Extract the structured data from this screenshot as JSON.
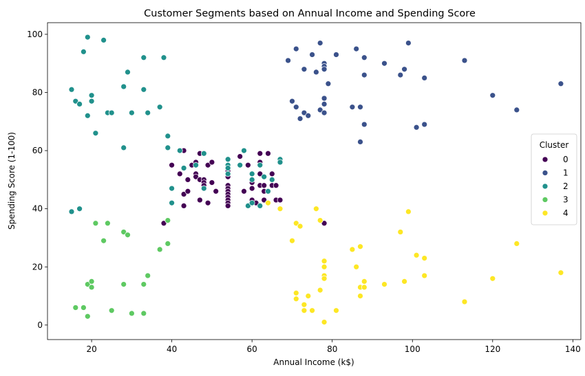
{
  "chart_data": {
    "type": "scatter",
    "title": "Customer Segments based on Annual Income and Spending Score",
    "xlabel": "Annual Income (k$)",
    "ylabel": "Spending Score (1-100)",
    "xlim": [
      9,
      142
    ],
    "ylim": [
      -5,
      104
    ],
    "xticks": [
      20,
      40,
      60,
      80,
      100,
      120,
      140
    ],
    "yticks": [
      0,
      20,
      40,
      60,
      80,
      100
    ],
    "grid": false,
    "legend": {
      "title": "Cluster",
      "placement": "right",
      "entries": [
        "0",
        "1",
        "2",
        "3",
        "4"
      ]
    },
    "series": [
      {
        "name": "0",
        "color": "#440154",
        "points": [
          [
            38,
            35
          ],
          [
            40,
            55
          ],
          [
            42,
            52
          ],
          [
            43,
            60
          ],
          [
            43,
            45
          ],
          [
            43,
            41
          ],
          [
            44,
            50
          ],
          [
            44,
            46
          ],
          [
            45,
            55
          ],
          [
            46,
            56
          ],
          [
            46,
            52
          ],
          [
            46,
            51
          ],
          [
            47,
            59
          ],
          [
            47,
            50
          ],
          [
            47,
            43
          ],
          [
            48,
            59
          ],
          [
            48,
            50
          ],
          [
            48,
            49
          ],
          [
            48,
            48
          ],
          [
            48,
            47
          ],
          [
            49,
            42
          ],
          [
            49,
            55
          ],
          [
            50,
            56
          ],
          [
            50,
            49
          ],
          [
            51,
            46
          ],
          [
            54,
            53
          ],
          [
            54,
            51
          ],
          [
            54,
            48
          ],
          [
            54,
            47
          ],
          [
            54,
            46
          ],
          [
            54,
            45
          ],
          [
            54,
            44
          ],
          [
            54,
            43
          ],
          [
            54,
            42
          ],
          [
            54,
            41
          ],
          [
            57,
            58
          ],
          [
            58,
            46
          ],
          [
            59,
            55
          ],
          [
            60,
            49
          ],
          [
            60,
            47
          ],
          [
            60,
            43
          ],
          [
            61,
            42
          ],
          [
            62,
            59
          ],
          [
            62,
            56
          ],
          [
            62,
            55
          ],
          [
            62,
            52
          ],
          [
            62,
            48
          ],
          [
            63,
            48
          ],
          [
            63,
            46
          ],
          [
            63,
            43
          ],
          [
            64,
            59
          ],
          [
            64,
            42
          ],
          [
            65,
            52
          ],
          [
            65,
            50
          ],
          [
            65,
            48
          ],
          [
            66,
            48
          ],
          [
            66,
            43
          ],
          [
            67,
            56
          ],
          [
            67,
            43
          ],
          [
            78,
            35
          ]
        ]
      },
      {
        "name": "1",
        "color": "#3b528b",
        "points": [
          [
            69,
            91
          ],
          [
            70,
            77
          ],
          [
            71,
            95
          ],
          [
            71,
            75
          ],
          [
            72,
            71
          ],
          [
            73,
            88
          ],
          [
            73,
            73
          ],
          [
            74,
            72
          ],
          [
            75,
            93
          ],
          [
            76,
            87
          ],
          [
            77,
            97
          ],
          [
            77,
            74
          ],
          [
            78,
            90
          ],
          [
            78,
            89
          ],
          [
            78,
            88
          ],
          [
            78,
            78
          ],
          [
            78,
            76
          ],
          [
            78,
            73
          ],
          [
            79,
            83
          ],
          [
            81,
            93
          ],
          [
            85,
            75
          ],
          [
            86,
            95
          ],
          [
            87,
            75
          ],
          [
            87,
            63
          ],
          [
            88,
            92
          ],
          [
            88,
            86
          ],
          [
            88,
            69
          ],
          [
            93,
            90
          ],
          [
            97,
            86
          ],
          [
            98,
            88
          ],
          [
            99,
            97
          ],
          [
            101,
            68
          ],
          [
            103,
            85
          ],
          [
            103,
            69
          ],
          [
            113,
            91
          ],
          [
            120,
            79
          ],
          [
            126,
            74
          ],
          [
            137,
            83
          ]
        ]
      },
      {
        "name": "2",
        "color": "#21918c",
        "points": [
          [
            15,
            81
          ],
          [
            15,
            39
          ],
          [
            16,
            77
          ],
          [
            17,
            76
          ],
          [
            17,
            40
          ],
          [
            18,
            94
          ],
          [
            19,
            99
          ],
          [
            19,
            72
          ],
          [
            20,
            79
          ],
          [
            20,
            77
          ],
          [
            21,
            66
          ],
          [
            23,
            98
          ],
          [
            24,
            73
          ],
          [
            25,
            73
          ],
          [
            28,
            82
          ],
          [
            28,
            61
          ],
          [
            29,
            87
          ],
          [
            30,
            73
          ],
          [
            33,
            92
          ],
          [
            33,
            81
          ],
          [
            34,
            73
          ],
          [
            37,
            75
          ],
          [
            38,
            92
          ],
          [
            39,
            65
          ],
          [
            39,
            61
          ],
          [
            40,
            47
          ],
          [
            40,
            42
          ],
          [
            42,
            60
          ],
          [
            43,
            54
          ],
          [
            46,
            55
          ],
          [
            48,
            59
          ],
          [
            48,
            47
          ],
          [
            54,
            57
          ],
          [
            54,
            55
          ],
          [
            54,
            54
          ],
          [
            54,
            52
          ],
          [
            57,
            55
          ],
          [
            58,
            60
          ],
          [
            59,
            41
          ],
          [
            60,
            52
          ],
          [
            60,
            50
          ],
          [
            60,
            42
          ],
          [
            62,
            41
          ],
          [
            62,
            55
          ],
          [
            63,
            51
          ],
          [
            64,
            46
          ],
          [
            65,
            50
          ],
          [
            67,
            57
          ],
          [
            67,
            56
          ]
        ]
      },
      {
        "name": "3",
        "color": "#5ec962",
        "points": [
          [
            16,
            6
          ],
          [
            18,
            6
          ],
          [
            19,
            14
          ],
          [
            19,
            3
          ],
          [
            20,
            15
          ],
          [
            20,
            13
          ],
          [
            21,
            35
          ],
          [
            23,
            29
          ],
          [
            24,
            35
          ],
          [
            25,
            5
          ],
          [
            28,
            32
          ],
          [
            28,
            14
          ],
          [
            29,
            31
          ],
          [
            30,
            4
          ],
          [
            33,
            14
          ],
          [
            33,
            4
          ],
          [
            34,
            17
          ],
          [
            37,
            26
          ],
          [
            39,
            36
          ],
          [
            39,
            28
          ]
        ]
      },
      {
        "name": "4",
        "color": "#fde725",
        "points": [
          [
            64,
            42
          ],
          [
            67,
            40
          ],
          [
            70,
            29
          ],
          [
            71,
            35
          ],
          [
            71,
            11
          ],
          [
            71,
            9
          ],
          [
            72,
            34
          ],
          [
            73,
            7
          ],
          [
            73,
            5
          ],
          [
            74,
            10
          ],
          [
            75,
            5
          ],
          [
            76,
            40
          ],
          [
            77,
            36
          ],
          [
            77,
            12
          ],
          [
            78,
            22
          ],
          [
            78,
            20
          ],
          [
            78,
            17
          ],
          [
            78,
            16
          ],
          [
            78,
            1
          ],
          [
            81,
            5
          ],
          [
            85,
            26
          ],
          [
            86,
            20
          ],
          [
            87,
            27
          ],
          [
            87,
            13
          ],
          [
            87,
            10
          ],
          [
            88,
            15
          ],
          [
            88,
            13
          ],
          [
            93,
            14
          ],
          [
            97,
            32
          ],
          [
            98,
            15
          ],
          [
            99,
            39
          ],
          [
            101,
            24
          ],
          [
            103,
            23
          ],
          [
            103,
            17
          ],
          [
            113,
            8
          ],
          [
            120,
            16
          ],
          [
            126,
            28
          ],
          [
            137,
            18
          ]
        ]
      }
    ]
  }
}
